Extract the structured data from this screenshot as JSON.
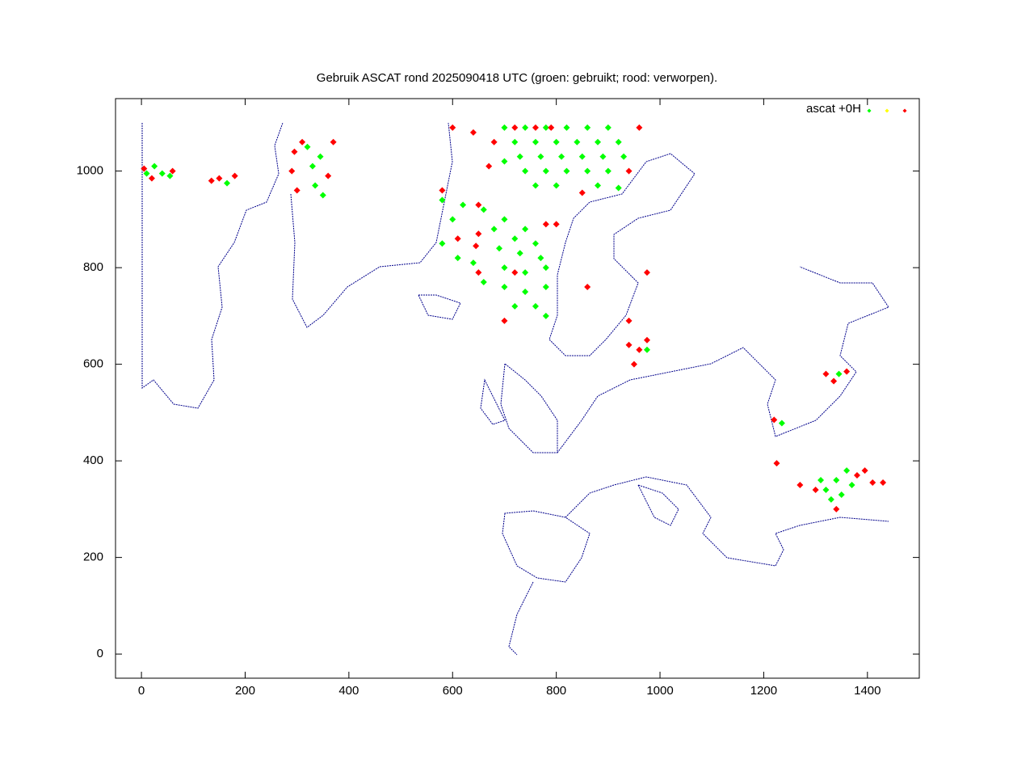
{
  "chart_data": {
    "type": "scatter",
    "title": "Gebruik ASCAT rond 2025090418 UTC (groen: gebruikt; rood: verworpen).",
    "legend_label": "ascat +0H",
    "legend": "top-right",
    "xlim": [
      -50,
      1500
    ],
    "ylim": [
      -50,
      1150
    ],
    "xticks": [
      0,
      200,
      400,
      600,
      800,
      1000,
      1200,
      1400
    ],
    "yticks": [
      0,
      200,
      400,
      600,
      800,
      1000
    ],
    "series": [
      {
        "color": "#00ff00",
        "x": [
          10,
          40,
          55,
          25,
          165,
          320,
          330,
          335,
          345,
          350,
          700,
          740,
          780,
          820,
          860,
          900,
          720,
          760,
          800,
          840,
          880,
          920,
          730,
          770,
          810,
          850,
          890,
          930,
          740,
          780,
          820,
          860,
          900,
          760,
          800,
          880,
          920,
          700,
          580,
          620,
          660,
          700,
          740,
          600,
          680,
          720,
          760,
          580,
          610,
          690,
          730,
          770,
          640,
          700,
          740,
          780,
          660,
          700,
          740,
          780,
          720,
          760,
          780,
          975,
          1345,
          1235,
          1320,
          1340,
          1360,
          1330,
          1350,
          1370,
          1310
        ],
        "values": [
          995,
          995,
          990,
          1010,
          975,
          1050,
          1010,
          970,
          1030,
          950,
          1090,
          1090,
          1090,
          1090,
          1090,
          1090,
          1060,
          1060,
          1060,
          1060,
          1060,
          1060,
          1030,
          1030,
          1030,
          1030,
          1030,
          1030,
          1000,
          1000,
          1000,
          1000,
          1000,
          970,
          970,
          970,
          965,
          1020,
          940,
          930,
          920,
          900,
          880,
          900,
          880,
          860,
          850,
          850,
          820,
          840,
          830,
          820,
          810,
          800,
          790,
          800,
          770,
          760,
          750,
          760,
          720,
          720,
          700,
          630,
          580,
          478,
          340,
          360,
          380,
          320,
          330,
          350,
          360
        ]
      },
      {
        "color": "#ffff00",
        "x": [],
        "values": []
      },
      {
        "color": "#ff0000",
        "x": [
          5,
          60,
          20,
          135,
          150,
          180,
          290,
          300,
          310,
          360,
          370,
          295,
          600,
          640,
          680,
          720,
          760,
          790,
          670,
          850,
          940,
          960,
          580,
          650,
          780,
          650,
          610,
          645,
          650,
          720,
          800,
          700,
          940,
          960,
          950,
          975,
          940,
          1320,
          1360,
          1335,
          1220,
          1380,
          1410,
          1340,
          1300,
          1270,
          1225,
          1430,
          1395,
          860,
          975
        ],
        "values": [
          1005,
          1000,
          985,
          980,
          985,
          990,
          1000,
          960,
          1060,
          990,
          1060,
          1040,
          1090,
          1080,
          1060,
          1090,
          1090,
          1090,
          1010,
          955,
          1000,
          1090,
          960,
          930,
          890,
          870,
          860,
          845,
          790,
          790,
          890,
          690,
          640,
          630,
          600,
          650,
          690,
          580,
          585,
          565,
          485,
          370,
          355,
          300,
          340,
          350,
          395,
          355,
          380,
          760,
          790
        ]
      }
    ]
  }
}
